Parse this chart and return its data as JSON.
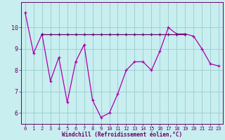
{
  "x": [
    0,
    1,
    2,
    3,
    4,
    5,
    6,
    7,
    8,
    9,
    10,
    11,
    12,
    13,
    14,
    15,
    16,
    17,
    18,
    19,
    20,
    21,
    22,
    23
  ],
  "line1": [
    10.7,
    8.8,
    9.7,
    7.5,
    8.6,
    6.5,
    8.4,
    9.2,
    6.6,
    5.8,
    6.0,
    6.9,
    8.0,
    8.4,
    8.4,
    8.0,
    8.9,
    10.0,
    9.7,
    9.7,
    9.6,
    9.0,
    8.3,
    8.2
  ],
  "line2": [
    9.7,
    9.7,
    9.7,
    9.7,
    9.7,
    9.7,
    9.7,
    9.7,
    9.7,
    9.7,
    9.7,
    9.7,
    9.7,
    9.7,
    9.7,
    9.7,
    9.7,
    9.7,
    9.7,
    9.7,
    9.7,
    9.7,
    9.7,
    9.7
  ],
  "line2_x_start": 2,
  "line2_x_end": 19,
  "line2_val": 9.7,
  "xlabel": "Windchill (Refroidissement éolien,°C)",
  "xlim_min": -0.5,
  "xlim_max": 23.5,
  "ylim_min": 5.5,
  "ylim_max": 11.2,
  "yticks": [
    6,
    7,
    8,
    9,
    10
  ],
  "xticks": [
    0,
    1,
    2,
    3,
    4,
    5,
    6,
    7,
    8,
    9,
    10,
    11,
    12,
    13,
    14,
    15,
    16,
    17,
    18,
    19,
    20,
    21,
    22,
    23
  ],
  "line_color": "#aa00aa",
  "line2_color": "#660066",
  "bg_color": "#c8eef0",
  "grid_color": "#99cccc",
  "tick_color": "#660066",
  "xlabel_color": "#660066"
}
